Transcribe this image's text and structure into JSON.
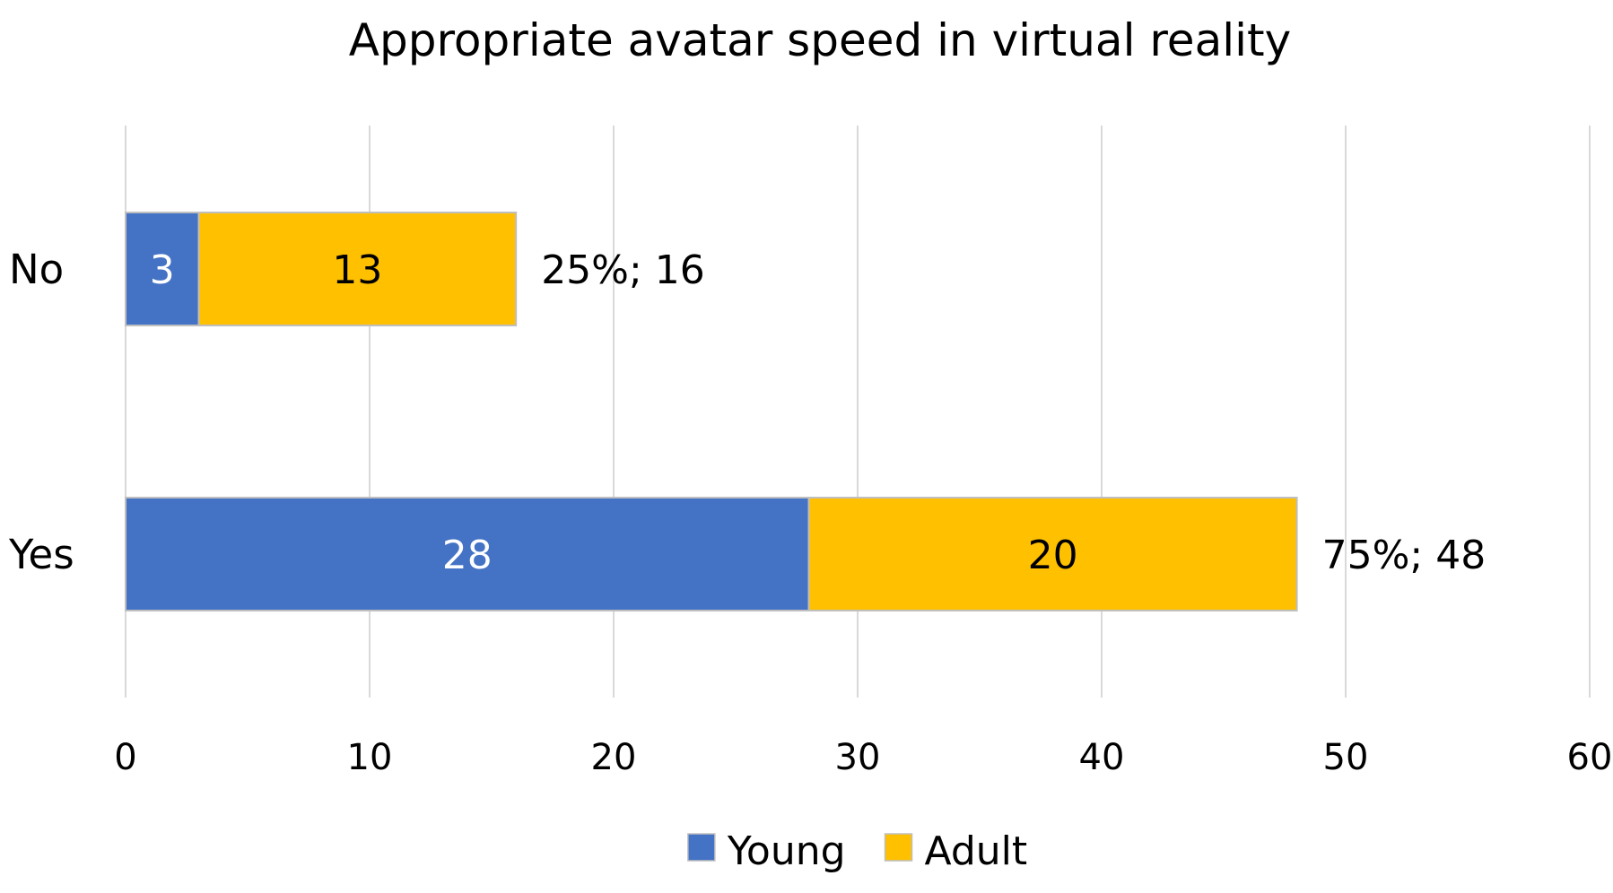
{
  "chart_data": {
    "type": "bar",
    "orientation": "horizontal",
    "stacked": true,
    "title": "Appropriate avatar speed in virtual reality",
    "categories": [
      "No",
      "Yes"
    ],
    "series": [
      {
        "name": "Young",
        "color": "#4472C4",
        "label_color": "#FFFFFF",
        "values": [
          3,
          28
        ]
      },
      {
        "name": "Adult",
        "color": "#FFC000",
        "label_color": "#000000",
        "values": [
          13,
          20
        ]
      }
    ],
    "total_labels": [
      "25%; 16",
      "75%; 48"
    ],
    "xlim": [
      0,
      60
    ],
    "x_ticks": [
      0,
      10,
      20,
      30,
      40,
      50,
      60
    ],
    "grid": true,
    "legend_position": "bottom"
  }
}
